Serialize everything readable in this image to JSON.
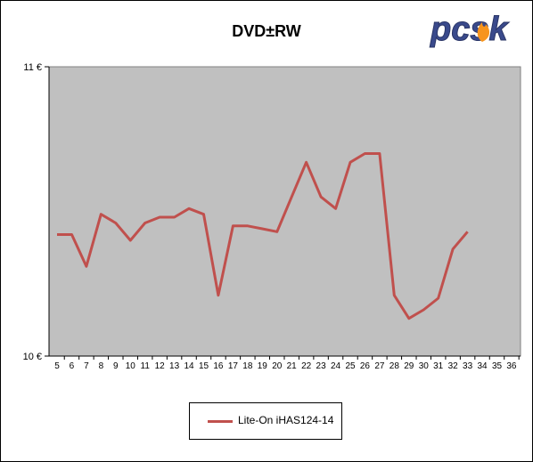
{
  "logo_text": "pcsk",
  "colors": {
    "plot_bg": "#c0c0c0",
    "series": "#c0504d",
    "logo_blue": "#3a4a8c",
    "logo_flame": "#f7941d"
  },
  "chart_data": {
    "type": "line",
    "title": "DVD±RW",
    "xlabel": "",
    "ylabel": "",
    "x": [
      5,
      6,
      7,
      8,
      9,
      10,
      11,
      12,
      13,
      14,
      15,
      16,
      17,
      18,
      19,
      20,
      21,
      22,
      23,
      24,
      25,
      26,
      27,
      28,
      29,
      30,
      31,
      32,
      33
    ],
    "x_ticks": [
      "5",
      "6",
      "7",
      "8",
      "9",
      "10",
      "11",
      "12",
      "13",
      "14",
      "15",
      "16",
      "17",
      "18",
      "19",
      "20",
      "21",
      "22",
      "23",
      "24",
      "25",
      "26",
      "27",
      "28",
      "29",
      "30",
      "31",
      "32",
      "33",
      "34",
      "35",
      "36"
    ],
    "xlim": [
      5,
      36
    ],
    "ylim": [
      10,
      11
    ],
    "y_ticks": [
      10,
      11
    ],
    "y_tick_labels": [
      "10 €",
      "11 €"
    ],
    "grid": false,
    "legend_position": "bottom",
    "series": [
      {
        "name": "Lite-On  iHAS124-14",
        "values": [
          10.42,
          10.42,
          10.31,
          10.49,
          10.46,
          10.4,
          10.46,
          10.48,
          10.48,
          10.51,
          10.49,
          10.21,
          10.45,
          10.45,
          10.44,
          10.43,
          10.55,
          10.67,
          10.55,
          10.51,
          10.67,
          10.7,
          10.7,
          10.21,
          10.13,
          10.16,
          10.2,
          10.37,
          10.43
        ]
      }
    ]
  }
}
